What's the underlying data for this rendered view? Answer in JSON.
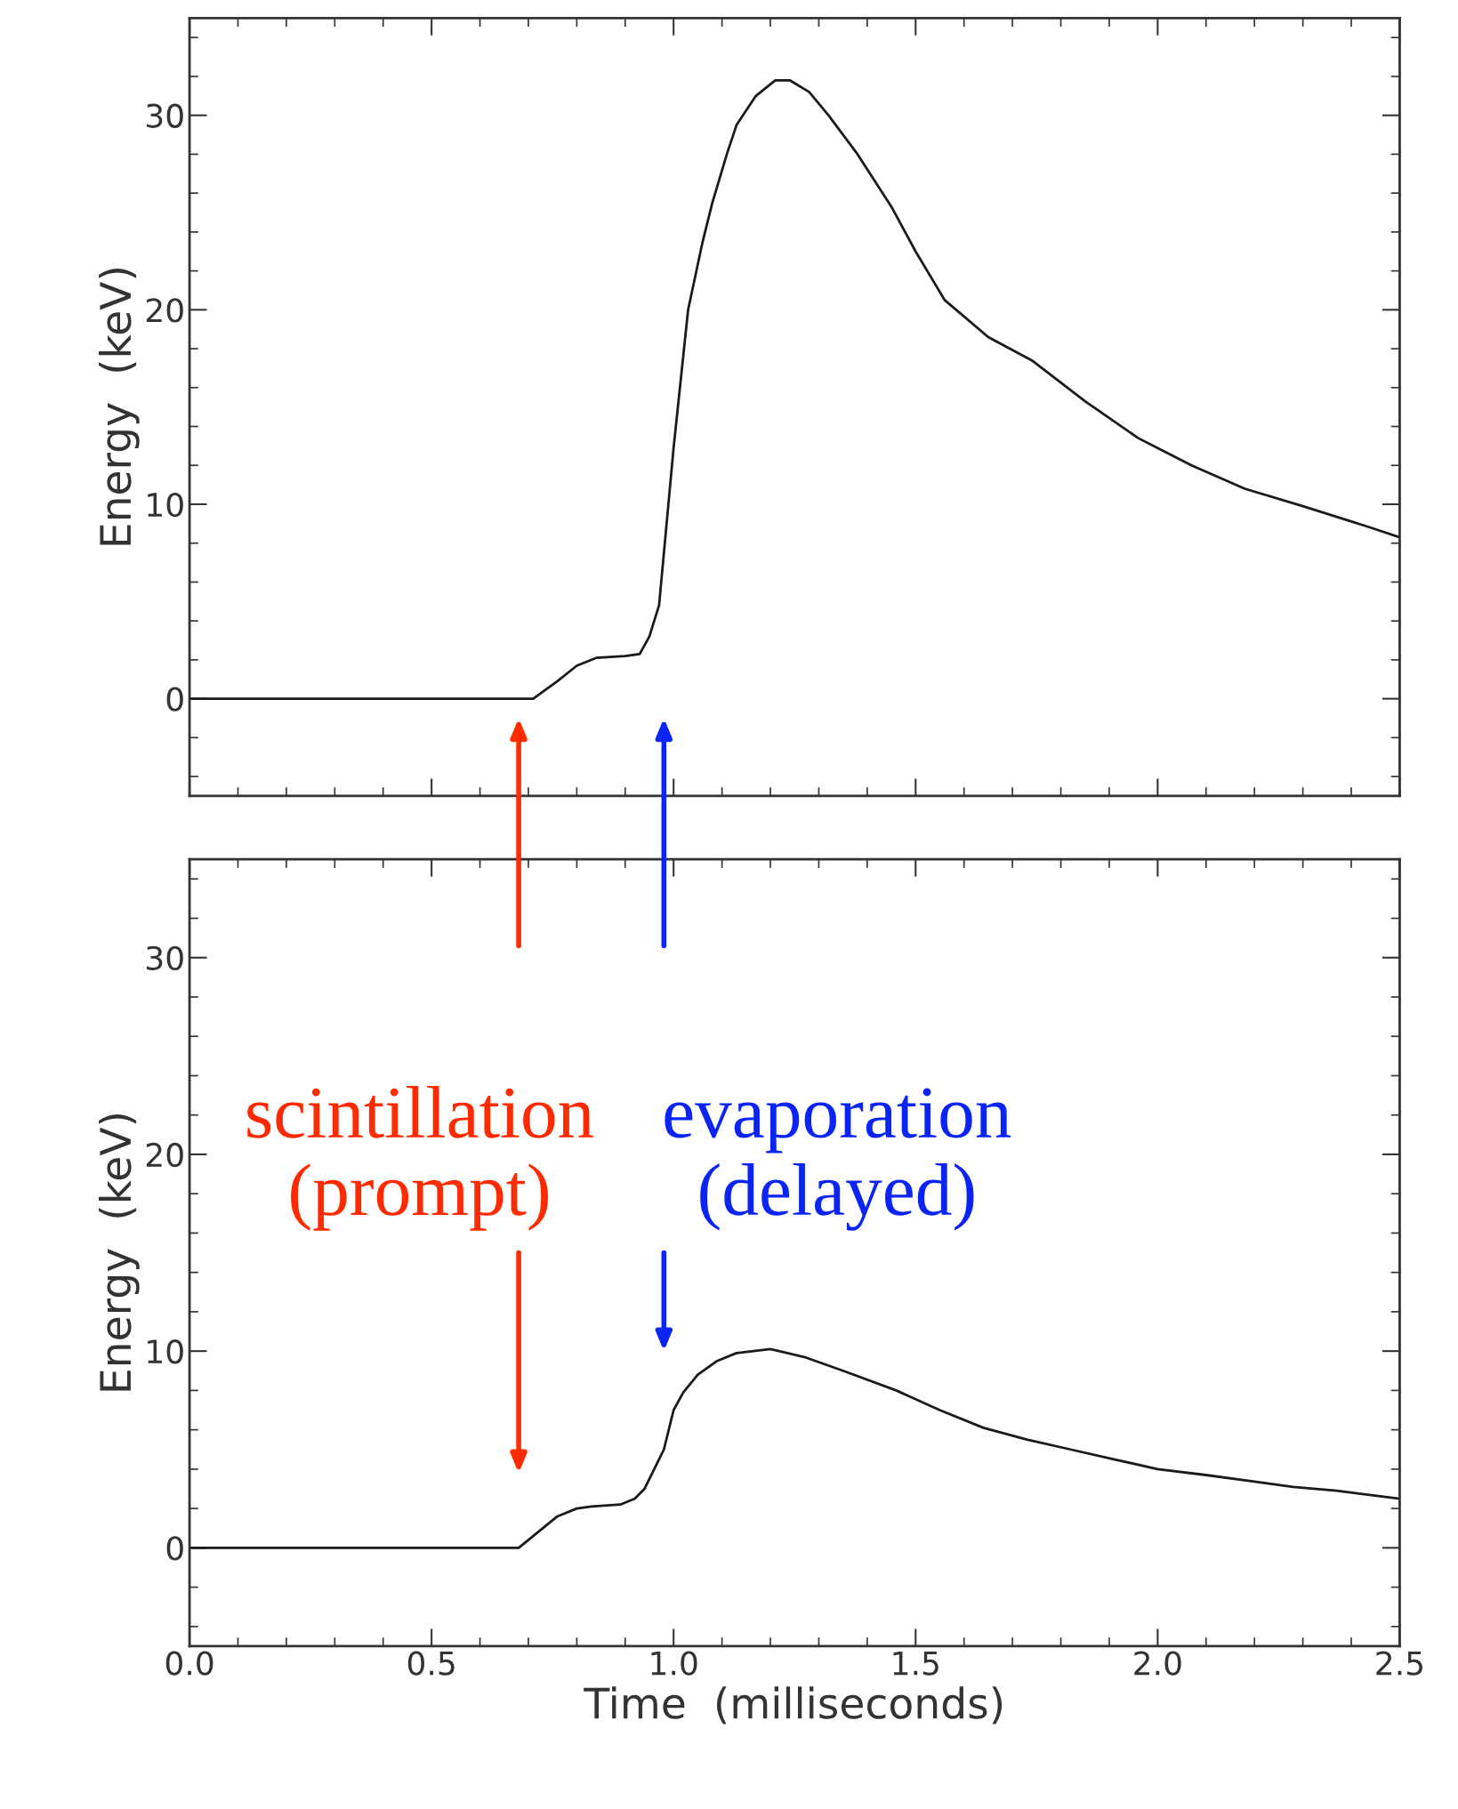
{
  "chart_data": [
    {
      "type": "line",
      "ylabel": "Energy  (keV)",
      "xlim": [
        0,
        2.5
      ],
      "ylim": [
        -5,
        35
      ],
      "xticks": [
        0,
        0.5,
        1,
        1.5,
        2,
        2.5
      ],
      "yticks": [
        0,
        10,
        20,
        30
      ],
      "tick_labels": "y",
      "grid": false,
      "series": [
        {
          "color": "#1a1a1a",
          "x": [
            0,
            0.2,
            0.4,
            0.6,
            0.71,
            0.76,
            0.8,
            0.84,
            0.9,
            0.93,
            0.95,
            0.97,
            1.0,
            1.03,
            1.06,
            1.08,
            1.11,
            1.13,
            1.17,
            1.21,
            1.24,
            1.28,
            1.32,
            1.38,
            1.45,
            1.5,
            1.56,
            1.65,
            1.74,
            1.85,
            1.96,
            2.07,
            2.18,
            2.3,
            2.44,
            2.5
          ],
          "values": [
            0,
            0,
            0,
            0,
            0,
            0.9,
            1.7,
            2.1,
            2.2,
            2.3,
            3.2,
            4.8,
            12.9,
            20,
            23.5,
            25.5,
            28,
            29.5,
            31,
            31.8,
            31.8,
            31.2,
            30,
            28,
            25.3,
            23,
            20.5,
            18.6,
            17.4,
            15.3,
            13.4,
            12,
            10.8,
            9.9,
            8.8,
            8.3
          ]
        }
      ]
    },
    {
      "type": "line",
      "xlabel": "Time  (milliseconds)",
      "ylabel": "Energy  (keV)",
      "xlim": [
        0,
        2.5
      ],
      "ylim": [
        -5,
        35
      ],
      "xticks": [
        {
          "value": 0,
          "label": "0.0"
        },
        0.5,
        {
          "value": 1,
          "label": "1.0"
        },
        1.5,
        {
          "value": 2,
          "label": "2.0"
        },
        2.5
      ],
      "yticks": [
        0,
        10,
        20,
        30
      ],
      "grid": false,
      "annotations": [
        "scintillation\n(prompt)",
        "evaporation\n(delayed)"
      ],
      "series": [
        {
          "color": "#1a1a1a",
          "x": [
            0,
            0.2,
            0.4,
            0.6,
            0.68,
            0.72,
            0.76,
            0.8,
            0.83,
            0.89,
            0.92,
            0.94,
            0.96,
            0.98,
            1.0,
            1.02,
            1.05,
            1.09,
            1.13,
            1.2,
            1.27,
            1.35,
            1.46,
            1.55,
            1.64,
            1.73,
            1.82,
            1.91,
            2.0,
            2.1,
            2.19,
            2.28,
            2.37,
            2.5
          ],
          "values": [
            0,
            0,
            0,
            0,
            0,
            0.8,
            1.6,
            2,
            2.1,
            2.2,
            2.5,
            3,
            4,
            5,
            7,
            7.9,
            8.8,
            9.5,
            9.9,
            10.1,
            9.7,
            9,
            8,
            7,
            6.1,
            5.5,
            5,
            4.5,
            4,
            3.7,
            3.4,
            3.1,
            2.9,
            2.5
          ]
        }
      ]
    }
  ]
}
